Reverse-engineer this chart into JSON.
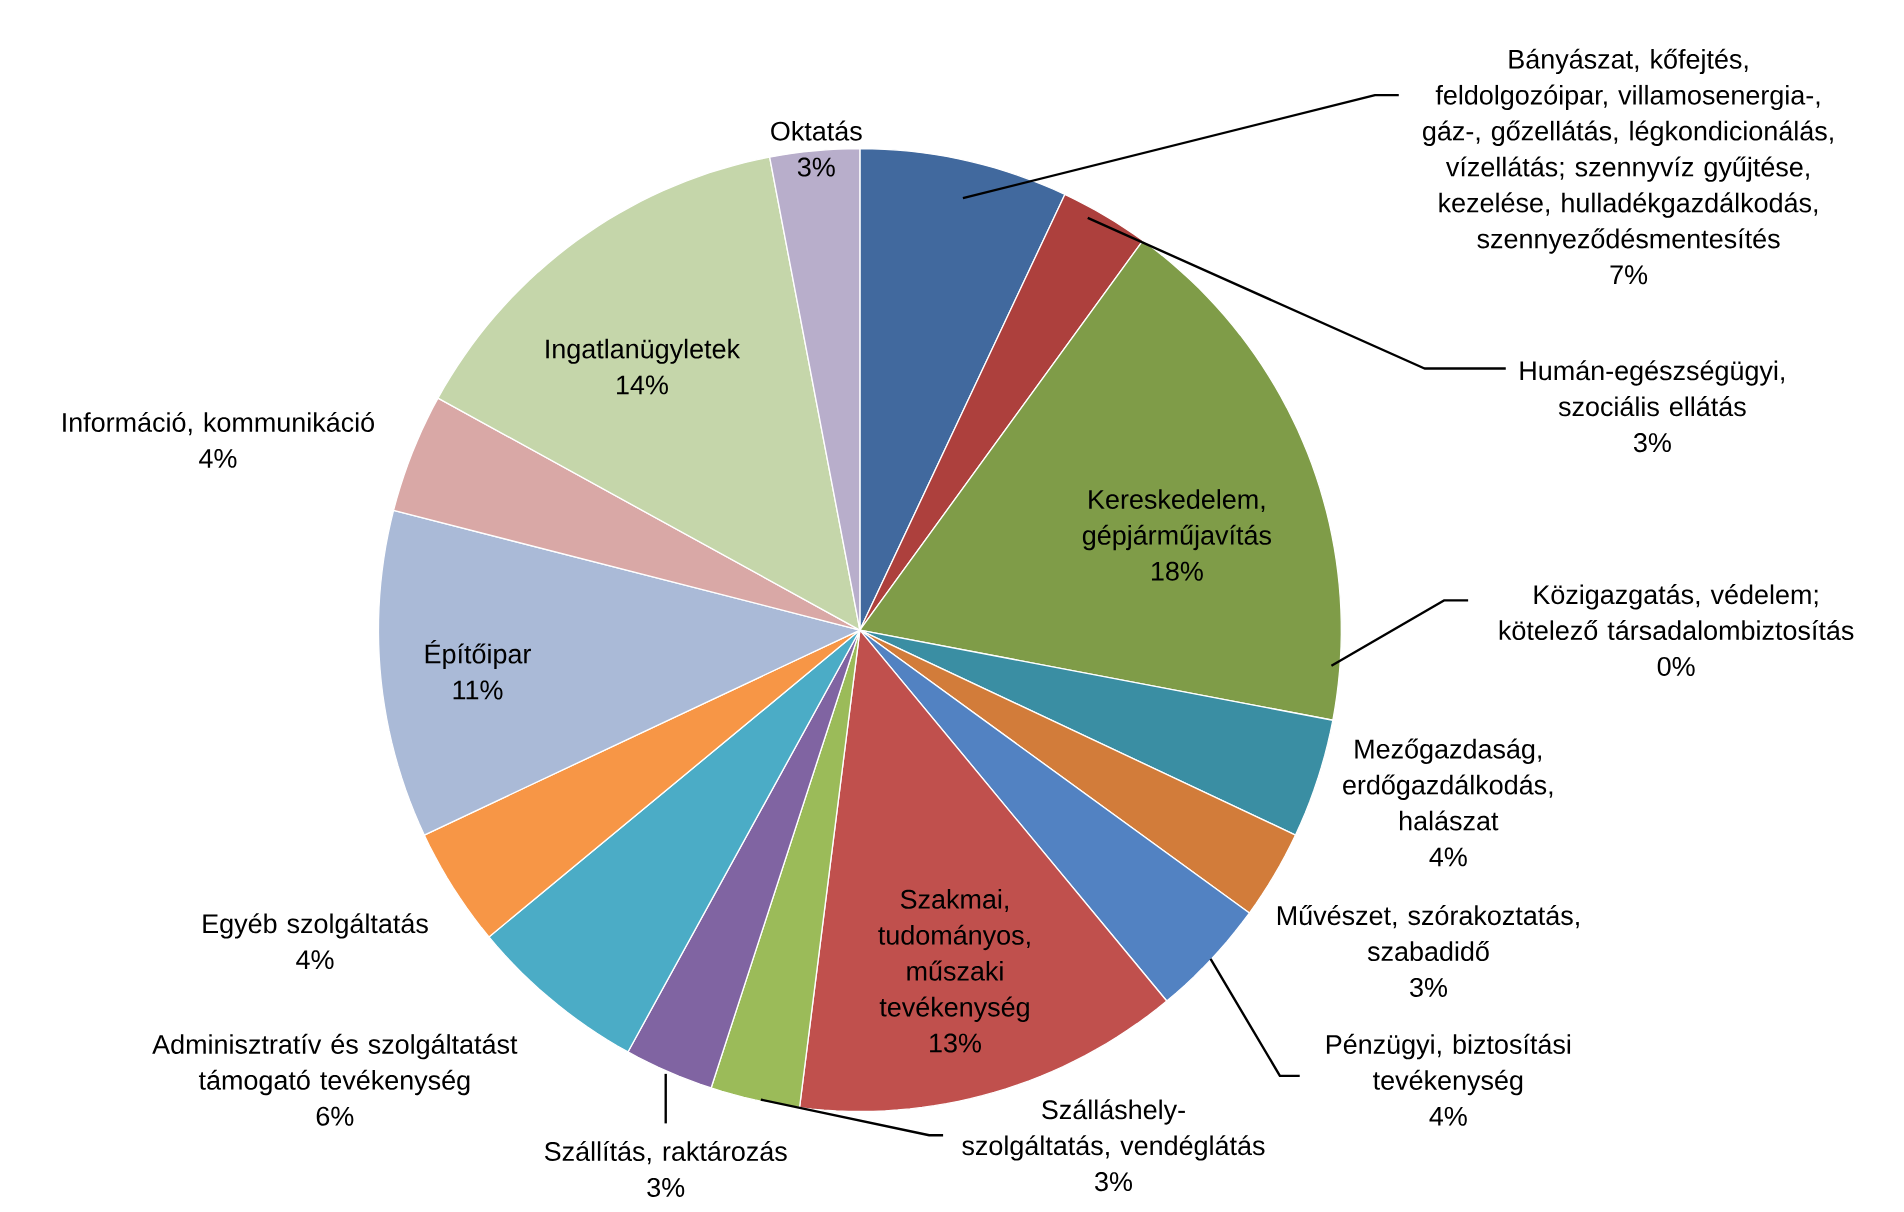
{
  "chart_data": {
    "type": "pie",
    "categories": [
      "Bányászat, kőfejtés, feldolgozóipar, villamosenergia-, gáz-, gőzellátás, légkondicionálás, vízellátás; szennyvíz gyűjtése, kezelése, hulladékgazdálkodás, szennyeződésmentesítés",
      "Humán-egészségügyi, szociális ellátás",
      "Kereskedelem, gépjárműjavítás",
      "Közigazgatás, védelem; kötelező társadalombiztosítás",
      "Mezőgazdaság, erdőgazdálkodás, halászat",
      "Művészet, szórakoztatás, szabadidő",
      "Pénzügyi, biztosítási tevékenység",
      "Szakmai, tudományos, műszaki tevékenység",
      "Szálláshely-szolgáltatás, vendéglátás",
      "Szállítás, raktározás",
      "Adminisztratív és szolgáltatást támogató tevékenység",
      "Egyéb szolgáltatás",
      "Építőipar",
      "Információ, kommunikáció",
      "Ingatlanügyletek",
      "Oktatás"
    ],
    "values": [
      7,
      3,
      18,
      0,
      4,
      3,
      4,
      13,
      3,
      3,
      6,
      4,
      11,
      4,
      14,
      3
    ],
    "value_labels": [
      "7%",
      "3%",
      "18%",
      "0%",
      "4%",
      "3%",
      "4%",
      "13%",
      "3%",
      "3%",
      "6%",
      "4%",
      "11%",
      "4%",
      "14%",
      "3%"
    ],
    "colors": [
      "#41699e",
      "#ad403d",
      "#7f9c48",
      "#2c4d75",
      "#3a8ea3",
      "#d27c3a",
      "#5282c2",
      "#c0504d",
      "#9bbb59",
      "#8064a2",
      "#4bacc6",
      "#f79646",
      "#aabad7",
      "#d9a8a6",
      "#c5d6aa",
      "#b8aecb"
    ]
  }
}
